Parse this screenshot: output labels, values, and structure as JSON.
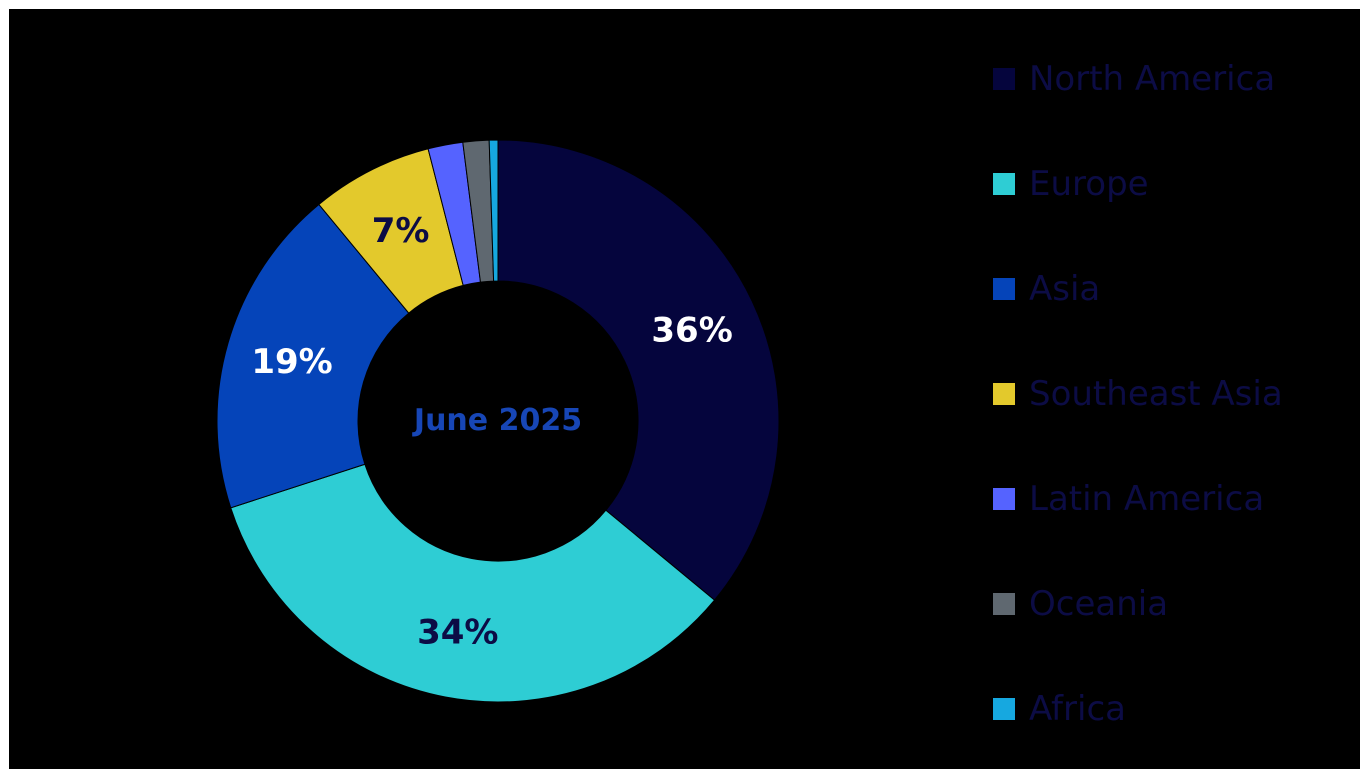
{
  "chart_data": {
    "type": "pie",
    "variant": "donut",
    "center_text": "June 2025",
    "center_text_color": "#1746b6",
    "legend_position": "right",
    "legend_text_color": "#0c0c45",
    "series": [
      {
        "name": "North America",
        "value": 36,
        "label": "36%",
        "color": "#05053d",
        "label_color": "#ffffff"
      },
      {
        "name": "Europe",
        "value": 34,
        "label": "34%",
        "color": "#2ecdd4",
        "label_color": "#0c0c45"
      },
      {
        "name": "Asia",
        "value": 19,
        "label": "19%",
        "color": "#0544b9",
        "label_color": "#ffffff"
      },
      {
        "name": "Southeast Asia",
        "value": 7,
        "label": "7%",
        "color": "#e3c92c",
        "label_color": "#0c0c45"
      },
      {
        "name": "Latin America",
        "value": 2,
        "label": "",
        "color": "#5563ff",
        "label_color": "#ffffff"
      },
      {
        "name": "Oceania",
        "value": 1.5,
        "label": "",
        "color": "#5f6870",
        "label_color": "#ffffff"
      },
      {
        "name": "Africa",
        "value": 0.5,
        "label": "",
        "color": "#16a8e0",
        "label_color": "#ffffff"
      }
    ]
  }
}
